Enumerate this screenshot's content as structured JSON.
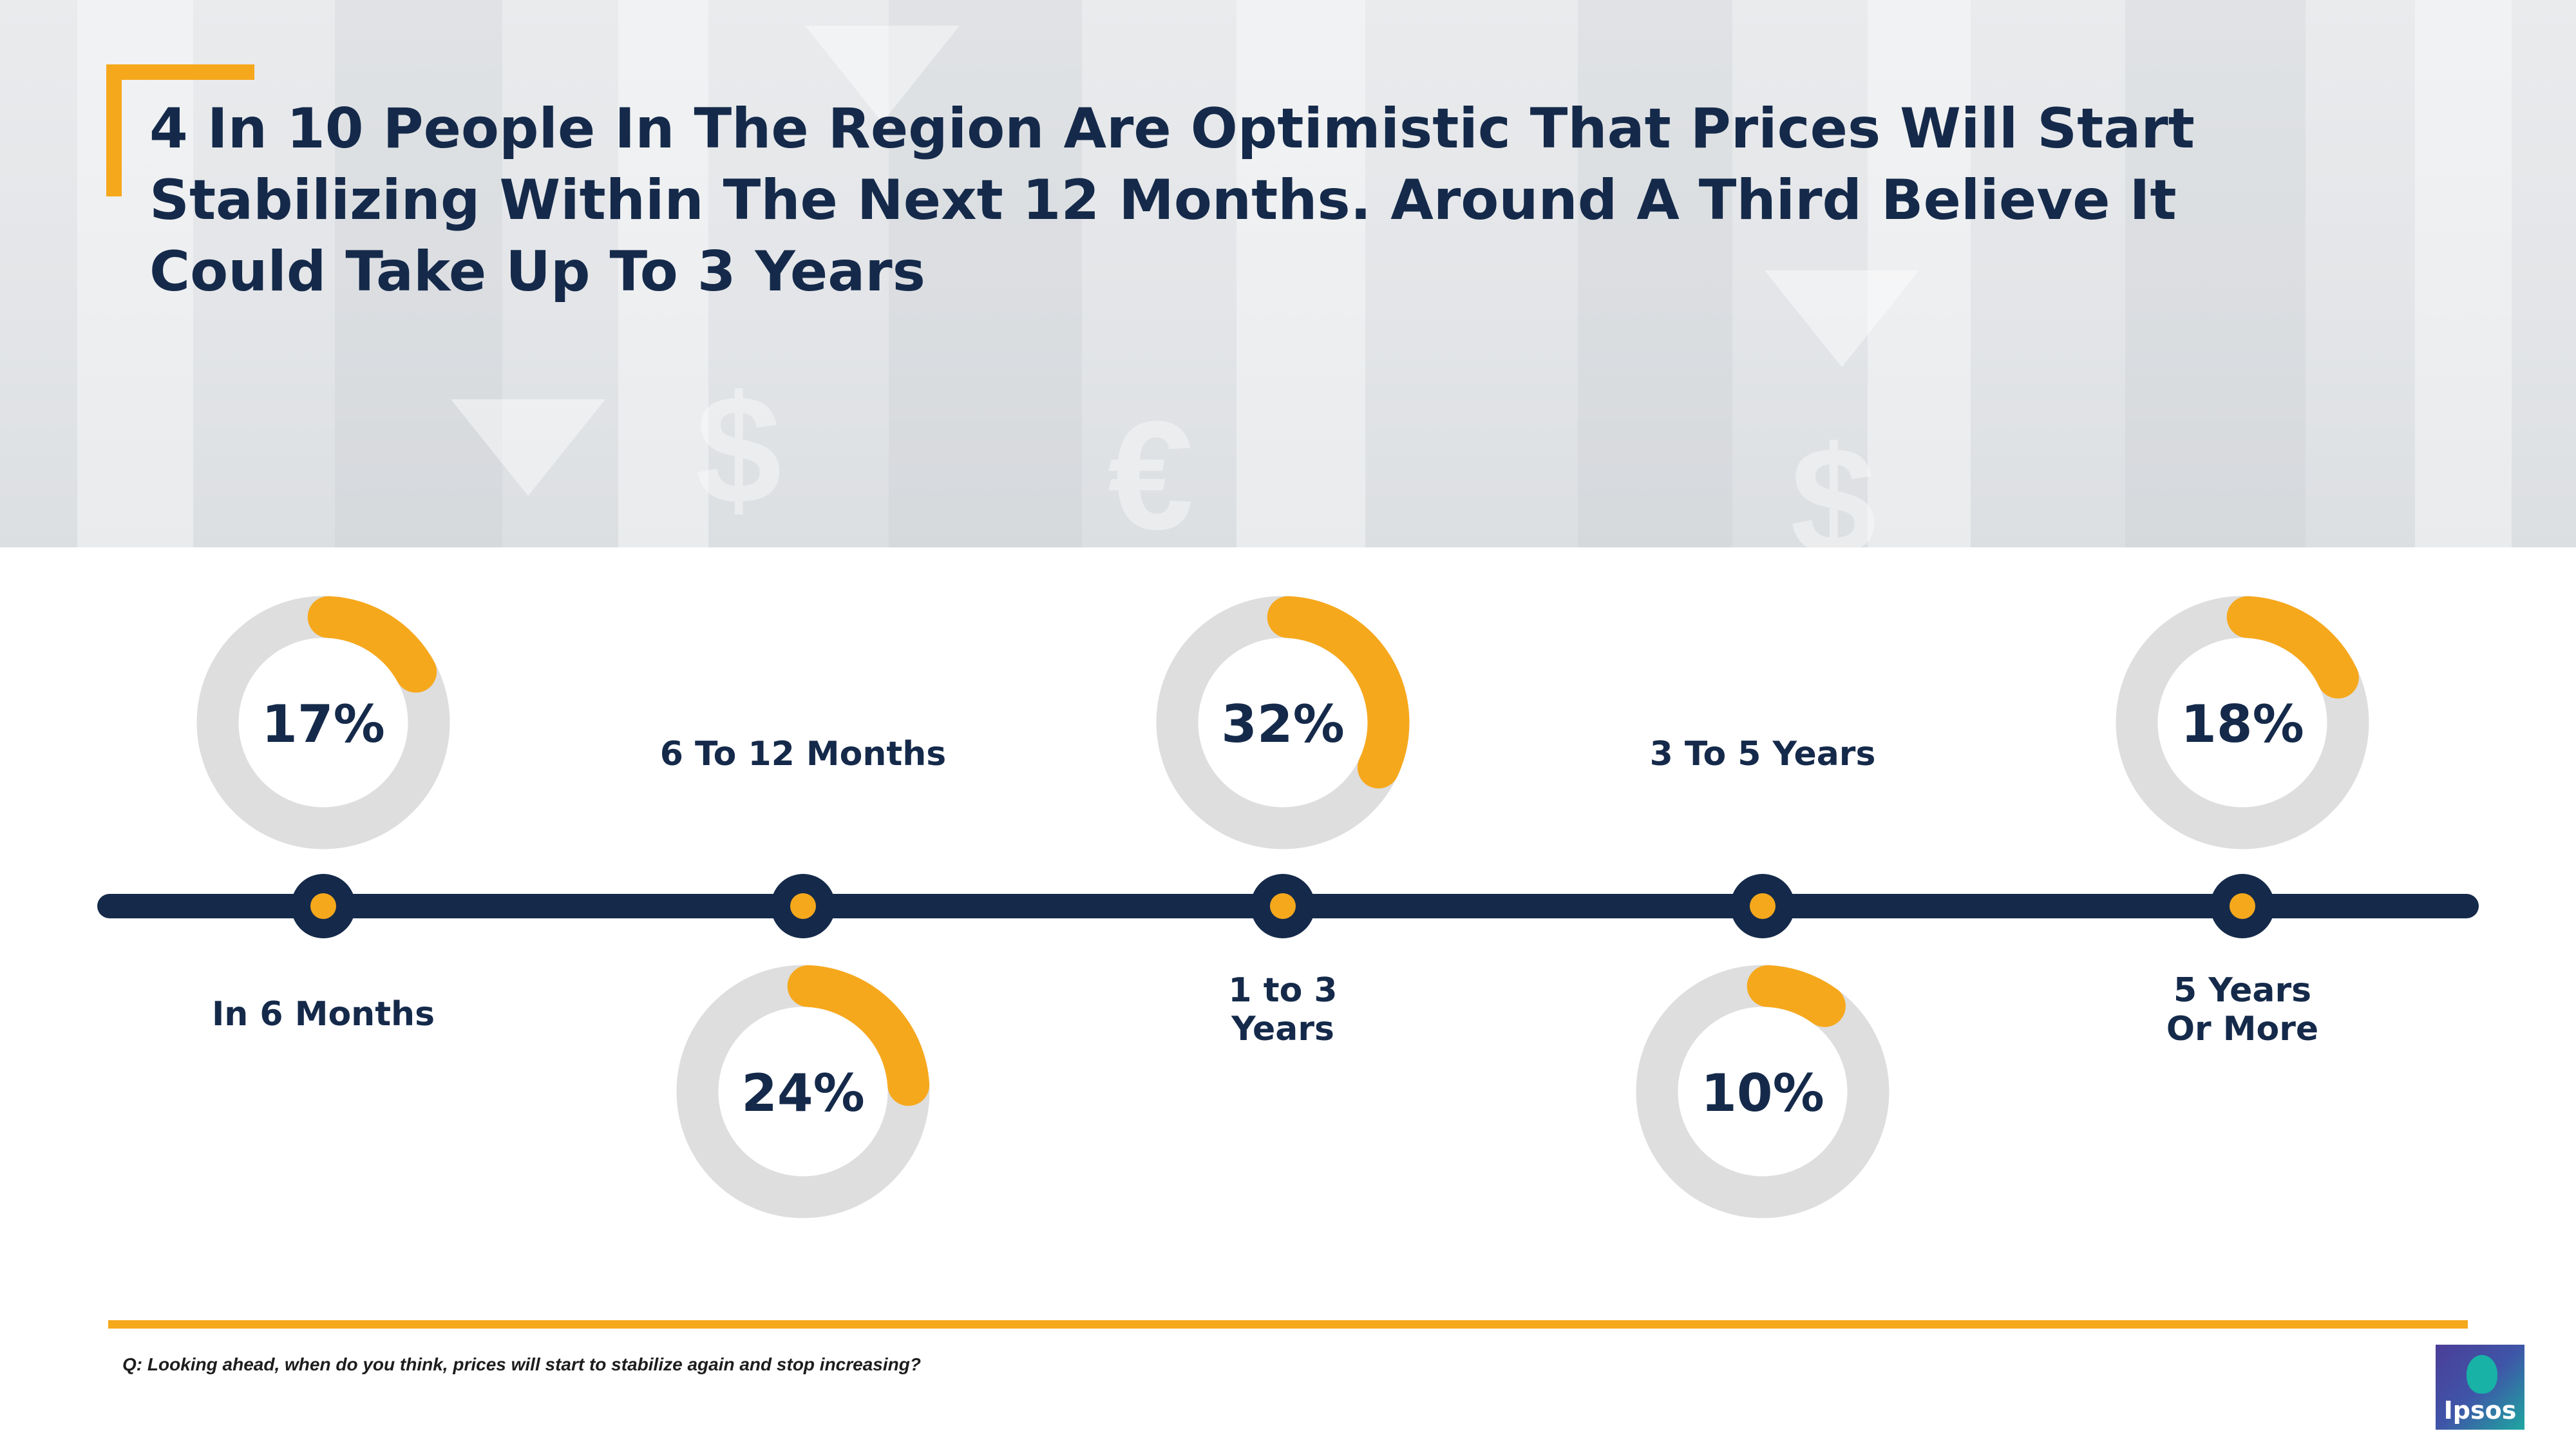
{
  "title": "4 In 10 People In The Region Are Optimistic That Prices Will Start Stabilizing Within The Next 12 Months. Around A Third Believe It Could Take Up To 3 Years",
  "question": "Q: Looking ahead, when do you think, prices will start to stabilize again and stop increasing?",
  "logo": {
    "text": "Ipsos"
  },
  "colors": {
    "navy": "#152A4A",
    "orange": "#F6A81C",
    "ring_track": "#DEDEDE"
  },
  "chart_data": {
    "type": "timeline-donut",
    "categories": [
      "In 6 Months",
      "6 To 12 Months",
      "1 to 3 Years",
      "3 To 5 Years",
      "5 Years Or More"
    ],
    "category_label_lines": [
      [
        "In 6 Months"
      ],
      [
        "6 To 12 Months"
      ],
      [
        "1 to 3",
        "Years"
      ],
      [
        "3 To 5 Years"
      ],
      [
        "5 Years",
        "Or More"
      ]
    ],
    "values": [
      17,
      24,
      32,
      10,
      18
    ],
    "value_labels": [
      "17%",
      "24%",
      "32%",
      "10%",
      "18%"
    ],
    "ring_placement": [
      "above",
      "below",
      "above",
      "below",
      "above"
    ],
    "unit": "%"
  }
}
